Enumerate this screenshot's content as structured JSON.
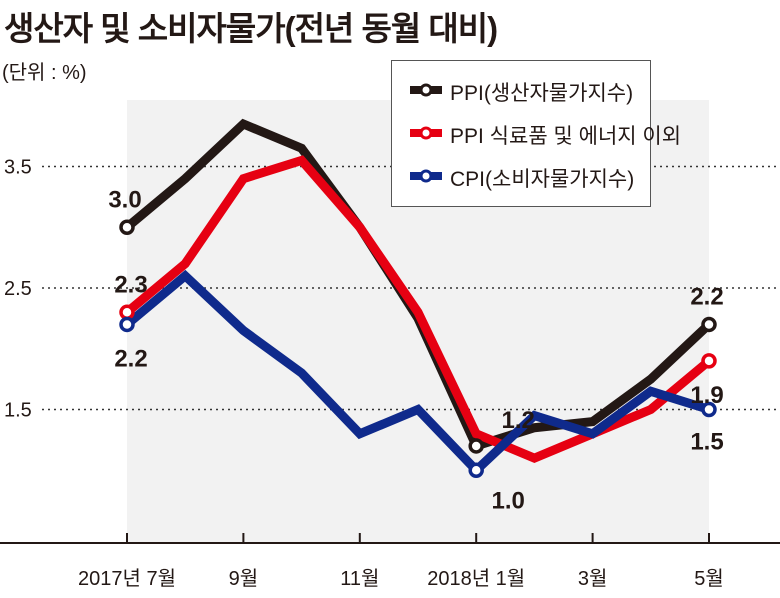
{
  "chart_data": {
    "type": "line",
    "title": "생산자 및 소비자물가(전년 동월 대비)",
    "unit": "(단위 : %)",
    "x": [
      "2017-07",
      "2017-08",
      "2017-09",
      "2017-10",
      "2017-11",
      "2017-12",
      "2018-01",
      "2018-02",
      "2018-03",
      "2018-04",
      "2018-05"
    ],
    "x_tick_labels": [
      {
        "index": 0,
        "label": "2017년 7월"
      },
      {
        "index": 2,
        "label": "9월"
      },
      {
        "index": 4,
        "label": "11월"
      },
      {
        "index": 6,
        "label": "2018년 1월"
      },
      {
        "index": 8,
        "label": "3월"
      },
      {
        "index": 10,
        "label": "5월"
      }
    ],
    "y_ticks": [
      {
        "value": 1.5,
        "label": "1.5"
      },
      {
        "value": 2.5,
        "label": "2.5"
      },
      {
        "value": 3.5,
        "label": "3.5"
      }
    ],
    "ylim": [
      0.4,
      4.6
    ],
    "grid": "dotted horizontal at ticks",
    "legend_placement": "top-right",
    "series": [
      {
        "name": "PPI(생산자물가지수)",
        "color": "#231815",
        "values": [
          3.0,
          3.4,
          3.85,
          3.65,
          3.0,
          2.25,
          1.2,
          1.35,
          1.4,
          1.75,
          2.2
        ],
        "markers": [
          0,
          6,
          10
        ]
      },
      {
        "name": "PPI 식료품 및 에너지 이외",
        "color": "#e60012",
        "values": [
          2.3,
          2.7,
          3.4,
          3.55,
          3.0,
          2.3,
          1.3,
          1.1,
          1.3,
          1.5,
          1.9
        ],
        "markers": [
          0,
          10
        ]
      },
      {
        "name": "CPI(소비자물가지수)",
        "color": "#0f2a8c",
        "values": [
          2.2,
          2.6,
          2.15,
          1.8,
          1.3,
          1.5,
          1.0,
          1.45,
          1.3,
          1.65,
          1.5
        ],
        "markers": [
          0,
          6,
          10
        ]
      }
    ],
    "annotations": [
      {
        "series": 0,
        "index": 0,
        "text": "3.0"
      },
      {
        "series": 1,
        "index": 0,
        "text": "2.3"
      },
      {
        "series": 2,
        "index": 0,
        "text": "2.2"
      },
      {
        "series": 0,
        "index": 6,
        "text": "1.2"
      },
      {
        "series": 2,
        "index": 6,
        "text": "1.0"
      },
      {
        "series": 0,
        "index": 10,
        "text": "2.2"
      },
      {
        "series": 1,
        "index": 10,
        "text": "1.9"
      },
      {
        "series": 2,
        "index": 10,
        "text": "1.5"
      }
    ]
  }
}
